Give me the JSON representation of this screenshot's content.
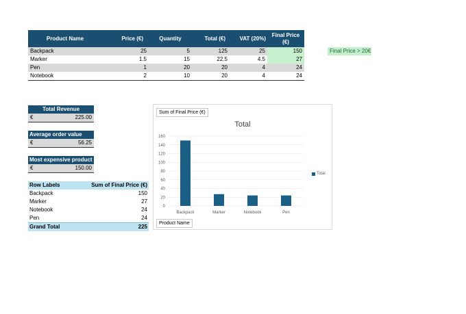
{
  "table": {
    "headers": [
      "Product Name",
      "Price (€)",
      "Quantity",
      "Total (€)",
      "VAT (20%)",
      "Final Price (€)"
    ],
    "rows": [
      [
        "Backpack",
        "25",
        "5",
        "125",
        "25",
        "150"
      ],
      [
        "Marker",
        "1.5",
        "15",
        "22.5",
        "4.5",
        "27"
      ],
      [
        "Pen",
        "1",
        "20",
        "20",
        "4",
        "24"
      ],
      [
        "Notebook",
        "2",
        "10",
        "20",
        "4",
        "24"
      ]
    ]
  },
  "conditional_note": "Final Price > 20€",
  "kpis": [
    {
      "label": "Total Revenue",
      "currency": "€",
      "value": "225.00"
    },
    {
      "label": "Average order value",
      "currency": "€",
      "value": "56.25"
    },
    {
      "label": "Most expensive product",
      "currency": "€",
      "value": "150.00"
    }
  ],
  "pivot": {
    "header_left": "Row Labels",
    "header_right": "Sum of Final Price (€)",
    "rows": [
      {
        "label": "Backpack",
        "value": "150"
      },
      {
        "label": "Marker",
        "value": "27"
      },
      {
        "label": "Notebook",
        "value": "24"
      },
      {
        "label": "Pen",
        "value": "24"
      }
    ],
    "total_label": "Grand Total",
    "total_value": "225"
  },
  "chart": {
    "field_button": "Sum of Final Price (€)",
    "axis_field_button": "Product Name",
    "legend_label": "Total",
    "bar_color": "#1b5e86"
  },
  "chart_data": {
    "type": "bar",
    "title": "Total",
    "categories": [
      "Backpack",
      "Marker",
      "Notebook",
      "Pen"
    ],
    "series": [
      {
        "name": "Total",
        "values": [
          150,
          27,
          24,
          24
        ]
      }
    ],
    "yticks": [
      0,
      20,
      40,
      60,
      80,
      100,
      120,
      140,
      160
    ],
    "ylim": [
      0,
      160
    ],
    "legend": "right",
    "grid": true
  },
  "colors": {
    "header": "#1b4f72",
    "highlight": "#c6efce",
    "pivot_header": "#bde3f2"
  }
}
